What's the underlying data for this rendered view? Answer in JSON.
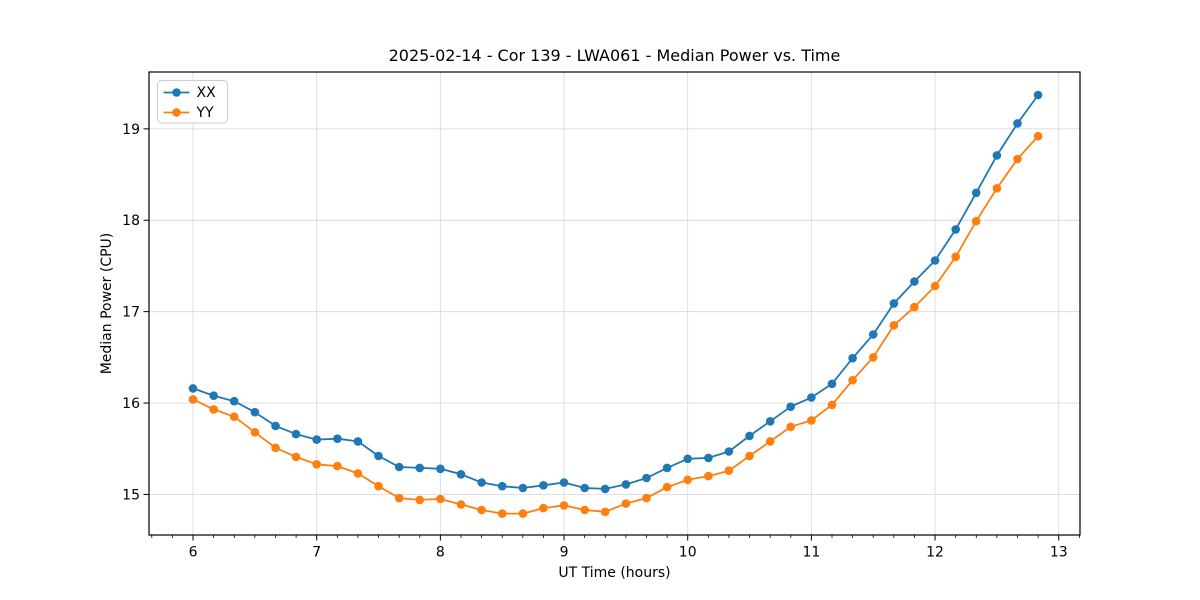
{
  "figure": {
    "title": "2025-02-14 - Cor 139 - LWA061 - Median Power vs. Time",
    "background_color": "#ffffff"
  },
  "legend": {
    "position": "upper left",
    "entries": [
      {
        "label": "XX",
        "color": "#1f77b4"
      },
      {
        "label": "YY",
        "color": "#ff7f0e"
      }
    ]
  },
  "axes": {
    "spine_color": "#000000",
    "grid_color": "#dcdcdc",
    "tick_color": "#000000"
  },
  "chart_data": {
    "type": "line",
    "title": "2025-02-14 - Cor 139 - LWA061 - Median Power vs. Time",
    "xlabel": "UT Time (hours)",
    "ylabel": "Median Power (CPU)",
    "xlim": [
      5.644,
      13.172
    ],
    "ylim": [
      14.556,
      19.622
    ],
    "x_ticks": [
      6,
      7,
      8,
      9,
      10,
      11,
      12,
      13
    ],
    "y_ticks": [
      15,
      16,
      17,
      18,
      19
    ],
    "x_minor_tick_interval": 0.166667,
    "grid": true,
    "legend_position": "upper left",
    "marker": "o",
    "x": [
      6.0,
      6.167,
      6.333,
      6.5,
      6.667,
      6.833,
      7.0,
      7.167,
      7.333,
      7.5,
      7.667,
      7.833,
      8.0,
      8.167,
      8.333,
      8.5,
      8.667,
      8.833,
      9.0,
      9.167,
      9.333,
      9.5,
      9.667,
      9.833,
      10.0,
      10.167,
      10.333,
      10.5,
      10.667,
      10.833,
      11.0,
      11.167,
      11.333,
      11.5,
      11.667,
      11.833,
      12.0,
      12.167,
      12.333,
      12.5,
      12.667,
      12.833
    ],
    "series": [
      {
        "name": "XX",
        "color": "#1f77b4",
        "values": [
          16.16,
          16.08,
          16.02,
          15.9,
          15.75,
          15.66,
          15.6,
          15.61,
          15.58,
          15.42,
          15.3,
          15.29,
          15.28,
          15.22,
          15.13,
          15.09,
          15.07,
          15.1,
          15.13,
          15.07,
          15.06,
          15.11,
          15.18,
          15.29,
          15.39,
          15.4,
          15.47,
          15.64,
          15.8,
          15.96,
          16.06,
          16.21,
          16.49,
          16.75,
          17.09,
          17.33,
          17.56,
          17.9,
          18.3,
          18.71,
          19.06,
          19.37
        ]
      },
      {
        "name": "YY",
        "color": "#ff7f0e",
        "values": [
          16.04,
          15.93,
          15.85,
          15.68,
          15.51,
          15.41,
          15.33,
          15.31,
          15.23,
          15.09,
          14.96,
          14.94,
          14.95,
          14.89,
          14.83,
          14.79,
          14.79,
          14.85,
          14.88,
          14.83,
          14.81,
          14.9,
          14.96,
          15.08,
          15.16,
          15.2,
          15.26,
          15.42,
          15.58,
          15.74,
          15.81,
          15.98,
          16.25,
          16.5,
          16.85,
          17.05,
          17.28,
          17.6,
          17.99,
          18.35,
          18.67,
          18.92
        ]
      }
    ]
  }
}
